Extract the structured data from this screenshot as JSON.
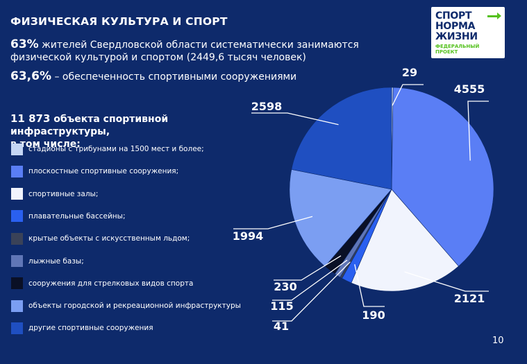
{
  "title": "ФИЗИЧЕСКАЯ КУЛЬТУРА И СПОРТ",
  "stat1": {
    "value": "63%",
    "text": "жителей Свердловской области систематически занимаются физической культурой и спортом  (2449,6 тысяч человек)"
  },
  "stat2": {
    "value": "63,6%",
    "text": "– обеспеченность спортивными сооружениями"
  },
  "infra": {
    "total": "11 873",
    "text": "объекта спортивной инфраструктуры,",
    "text2": "в том числе:"
  },
  "logo": {
    "line1": "СПОРТ",
    "line2": "НОРМА",
    "line3": "ЖИЗНИ",
    "sub1": "ФЕДЕРАЛЬНЫЙ",
    "sub2": "ПРОЕКТ"
  },
  "page_number": "10",
  "colors": {
    "background": "#0e2a6b",
    "accent_green": "#55c11f"
  },
  "chart_data": {
    "type": "pie",
    "title": "",
    "start": "top",
    "direction": "clockwise",
    "series": [
      {
        "label": "стадионы с трибунами на 1500 мест и более;",
        "value": 29,
        "value_label": "29",
        "color": "#c5d6f5"
      },
      {
        "label": "плоскостные спортивные сооружения;",
        "value": 4555,
        "value_label": "4555",
        "color": "#5a7ef5"
      },
      {
        "label": "спортивные залы;",
        "value": 2121,
        "value_label": "2121",
        "color": "#f1f4fd"
      },
      {
        "label": "плавательные бассейны;",
        "value": 190,
        "value_label": "190",
        "color": "#2a60f0"
      },
      {
        "label": "крытые объекты с искусственным льдом;",
        "value": 41,
        "value_label": "41",
        "color": "#3a4258"
      },
      {
        "label": "лыжные базы;",
        "value": 115,
        "value_label": "115",
        "color": "#6076b6"
      },
      {
        "label": "сооружения для стрелковых видов спорта",
        "value": 230,
        "value_label": "230",
        "color": "#0a1026"
      },
      {
        "label": "объекты городской и рекреационной инфраструктуры",
        "value": 1994,
        "value_label": "1994",
        "color": "#7b9ef2"
      },
      {
        "label": "другие спортивные сооружения",
        "value": 2598,
        "value_label": "2598",
        "color": "#1f4fc1"
      }
    ]
  }
}
